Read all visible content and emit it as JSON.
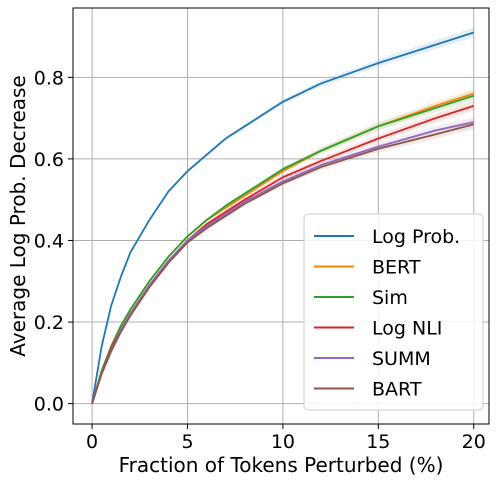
{
  "chart_data": {
    "type": "line",
    "xlabel": "Fraction of Tokens Perturbed (%)",
    "ylabel": "Average Log Prob. Decrease",
    "xlim": [
      -1,
      20.8
    ],
    "ylim": [
      -0.05,
      0.97
    ],
    "xticks": [
      0,
      5,
      10,
      15,
      20
    ],
    "yticks": [
      0.0,
      0.2,
      0.4,
      0.6,
      0.8
    ],
    "xtick_labels": [
      "0",
      "5",
      "10",
      "15",
      "20"
    ],
    "ytick_labels": [
      "0.0",
      "0.2",
      "0.4",
      "0.6",
      "0.8"
    ],
    "grid": true,
    "legend_position": "lower-right",
    "x": [
      0,
      0.5,
      1,
      1.5,
      2,
      3,
      4,
      5,
      6,
      7,
      8,
      10,
      12,
      15,
      18,
      20
    ],
    "series": [
      {
        "name": "Log Prob.",
        "color": "#1f77b4",
        "values": [
          0.0,
          0.14,
          0.24,
          0.31,
          0.37,
          0.45,
          0.52,
          0.57,
          0.61,
          0.65,
          0.68,
          0.74,
          0.785,
          0.835,
          0.88,
          0.91
        ]
      },
      {
        "name": "BERT",
        "color": "#ff7f0e",
        "values": [
          0.0,
          0.08,
          0.14,
          0.19,
          0.23,
          0.3,
          0.36,
          0.41,
          0.45,
          0.48,
          0.51,
          0.57,
          0.62,
          0.68,
          0.73,
          0.76
        ]
      },
      {
        "name": "Sim",
        "color": "#2ca02c",
        "values": [
          0.0,
          0.08,
          0.14,
          0.19,
          0.23,
          0.3,
          0.36,
          0.41,
          0.45,
          0.485,
          0.515,
          0.575,
          0.62,
          0.68,
          0.725,
          0.755
        ]
      },
      {
        "name": "Log NLI",
        "color": "#d62728",
        "values": [
          0.0,
          0.075,
          0.135,
          0.18,
          0.22,
          0.29,
          0.35,
          0.4,
          0.44,
          0.47,
          0.5,
          0.555,
          0.595,
          0.65,
          0.7,
          0.73
        ]
      },
      {
        "name": "SUMM",
        "color": "#9467bd",
        "values": [
          0.0,
          0.075,
          0.13,
          0.18,
          0.22,
          0.29,
          0.35,
          0.4,
          0.435,
          0.465,
          0.495,
          0.545,
          0.585,
          0.63,
          0.67,
          0.69
        ]
      },
      {
        "name": "BART",
        "color": "#8c564b",
        "values": [
          0.0,
          0.073,
          0.128,
          0.175,
          0.215,
          0.285,
          0.345,
          0.395,
          0.43,
          0.46,
          0.49,
          0.54,
          0.58,
          0.625,
          0.66,
          0.685
        ]
      }
    ]
  }
}
